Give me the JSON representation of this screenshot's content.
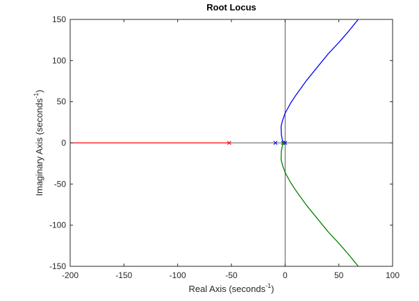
{
  "chart_data": {
    "type": "line",
    "title": "Root Locus",
    "xlabel": {
      "text": "Real  Axis  (seconds",
      "sup": "-1",
      "close": ")"
    },
    "ylabel": {
      "text": "Imaginary  Axis  (seconds",
      "sup": "-1",
      "close": ")"
    },
    "xlim": [
      -200,
      100
    ],
    "ylim": [
      -150,
      150
    ],
    "xticks": [
      -200,
      -150,
      -100,
      -50,
      0,
      50,
      100
    ],
    "yticks": [
      -150,
      -100,
      -50,
      0,
      50,
      100,
      150
    ],
    "grid": false,
    "colors": {
      "axes": "#262626",
      "reference": "#555555",
      "series_red": "#ff0000",
      "series_blue": "#0000ff",
      "series_green": "#008000"
    },
    "poles": [
      {
        "x": -52,
        "y": 0,
        "color": "#ff0000"
      },
      {
        "x": -9,
        "y": 0,
        "color": "#0000ff"
      },
      {
        "x": -2,
        "y": 0,
        "color": "#008000"
      },
      {
        "x": 0,
        "y": 0,
        "color": "#0000ff"
      }
    ],
    "series": [
      {
        "color": "#ff0000",
        "x": [
          -52,
          -70,
          -100,
          -130,
          -160,
          -200
        ],
        "y": [
          0,
          0,
          0,
          0,
          0,
          0
        ]
      },
      {
        "color": "#0000ff",
        "x": [
          -2,
          -3.5,
          -3.8,
          -2.5,
          0,
          5,
          10,
          20,
          30,
          40,
          50,
          60,
          68
        ],
        "y": [
          0,
          10,
          20,
          27,
          36,
          48,
          58,
          76,
          92,
          108,
          122,
          137,
          150
        ]
      },
      {
        "color": "#008000",
        "x": [
          -2,
          -3.5,
          -3.8,
          -2.5,
          0,
          5,
          10,
          20,
          30,
          40,
          50,
          60,
          68
        ],
        "y": [
          0,
          -10,
          -20,
          -27,
          -36,
          -48,
          -58,
          -76,
          -92,
          -108,
          -122,
          -137,
          -150
        ]
      }
    ]
  }
}
